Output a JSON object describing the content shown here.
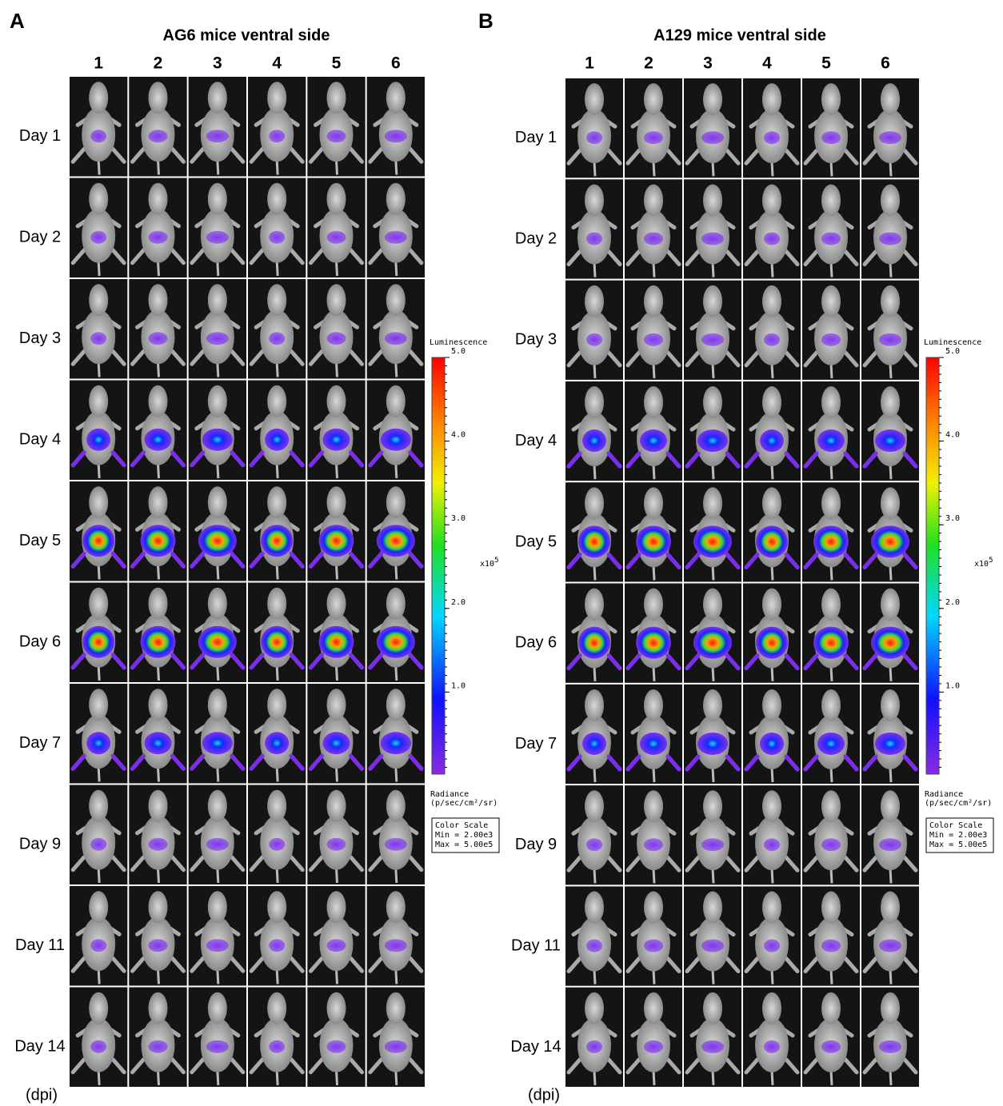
{
  "panels": [
    {
      "letter": "A",
      "title": "AG6 mice ventral side",
      "columns": [
        "1",
        "2",
        "3",
        "4",
        "5",
        "6"
      ],
      "rows": [
        "Day 1",
        "Day 2",
        "Day 3",
        "Day 4",
        "Day 5",
        "Day 6",
        "Day 7",
        "Day 9",
        "Day 11",
        "Day 14"
      ],
      "unit": "(dpi)"
    },
    {
      "letter": "B",
      "title": "A129 mice ventral side",
      "columns": [
        "1",
        "2",
        "3",
        "4",
        "5",
        "6"
      ],
      "rows": [
        "Day 1",
        "Day 2",
        "Day 3",
        "Day 4",
        "Day 5",
        "Day 6",
        "Day 7",
        "Day 9",
        "Day 11",
        "Day 14"
      ],
      "unit": "(dpi)"
    }
  ],
  "colorbars": [
    {
      "title": "Luminescence",
      "ticks": [
        "5.0",
        "4.0",
        "3.0",
        "2.0",
        "1.0"
      ],
      "multiplier": "x10",
      "exponent": "5",
      "radiance": [
        "Radiance",
        "(p/sec/cm²/sr)"
      ],
      "scale": [
        "Color Scale",
        "Min = 2.00e3",
        "Max = 5.00e5"
      ]
    },
    {
      "title": "Luminescence",
      "ticks": [
        "5.0",
        "4.0",
        "3.0",
        "2.0",
        "1.0"
      ],
      "multiplier": "x10",
      "exponent": "5",
      "radiance": [
        "Radiance",
        "(p/sec/cm²/sr)"
      ],
      "scale": [
        "Color Scale",
        "Min = 2.00e3",
        "Max = 5.00e5"
      ]
    }
  ]
}
